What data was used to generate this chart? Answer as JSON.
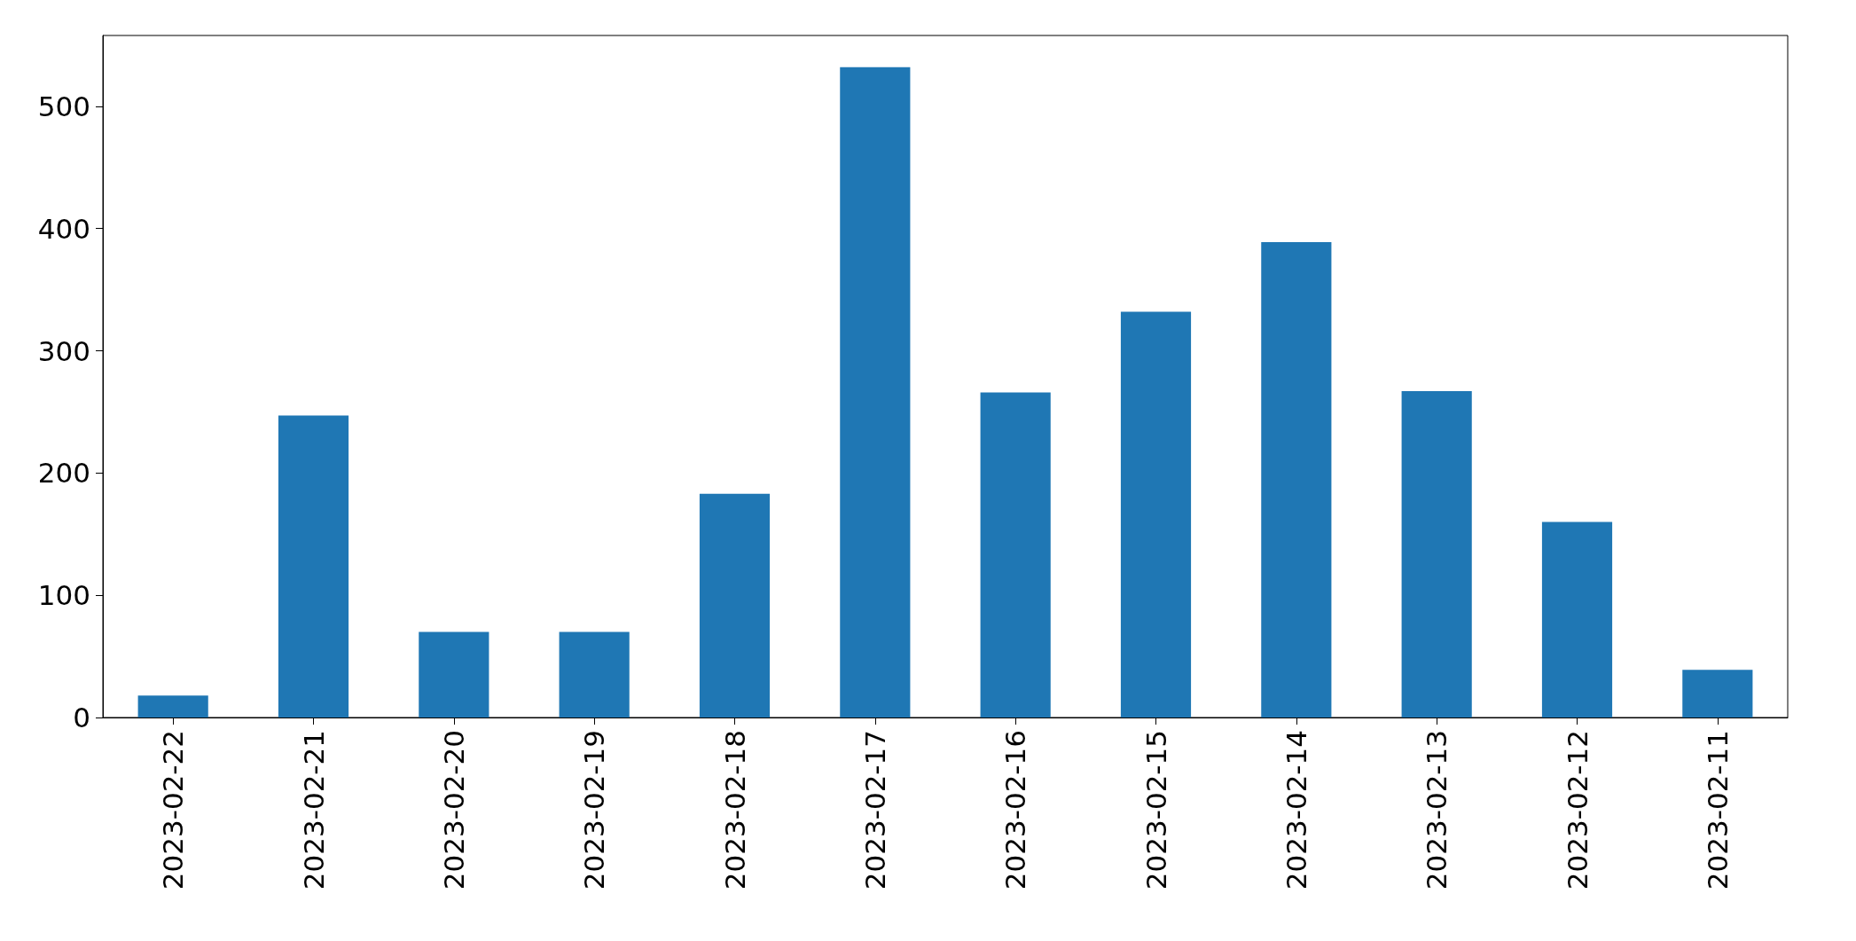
{
  "chart_data": {
    "type": "bar",
    "categories": [
      "2023-02-22",
      "2023-02-21",
      "2023-02-20",
      "2023-02-19",
      "2023-02-18",
      "2023-02-17",
      "2023-02-16",
      "2023-02-15",
      "2023-02-14",
      "2023-02-13",
      "2023-02-12",
      "2023-02-11"
    ],
    "values": [
      18,
      247,
      70,
      70,
      183,
      532,
      266,
      332,
      389,
      267,
      160,
      39
    ],
    "color": "#1f77b4",
    "ylim": [
      0,
      558
    ],
    "yticks": [
      0,
      100,
      200,
      300,
      400,
      500
    ]
  }
}
